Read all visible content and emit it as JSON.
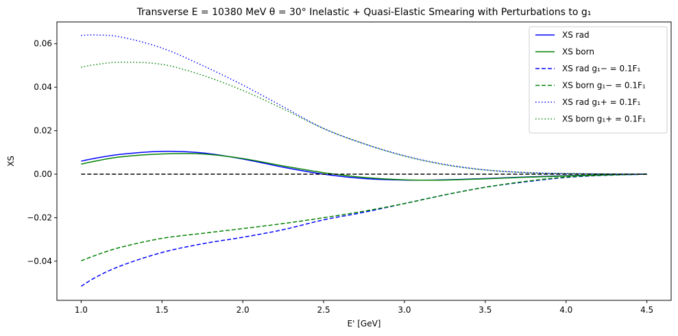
{
  "chart_data": {
    "type": "line",
    "title": "Transverse E = 10380 MeV θ = 30° Inelastic + Quasi-Elastic Smearing with Perturbations to g₁",
    "xlabel": "E' [GeV]",
    "ylabel": "XS",
    "xlim": [
      0.85,
      4.65
    ],
    "ylim": [
      -0.058,
      0.07
    ],
    "xticks": [
      1.0,
      1.5,
      2.0,
      2.5,
      3.0,
      3.5,
      4.0,
      4.5
    ],
    "xtick_labels": [
      "1.0",
      "1.5",
      "2.0",
      "2.5",
      "3.0",
      "3.5",
      "4.0",
      "4.5"
    ],
    "yticks": [
      -0.04,
      -0.02,
      0.0,
      0.02,
      0.04,
      0.06
    ],
    "ytick_labels": [
      "−0.04",
      "−0.02",
      "0.00",
      "0.02",
      "0.04",
      "0.06"
    ],
    "grid": false,
    "legend_position": "top-right",
    "x": [
      1.0,
      1.1,
      1.25,
      1.5,
      1.75,
      2.0,
      2.25,
      2.5,
      2.75,
      3.0,
      3.25,
      3.5,
      3.75,
      4.0,
      4.25,
      4.5
    ],
    "series": [
      {
        "name": "XS rad",
        "color": "#0000ff",
        "style": "solid",
        "values": [
          0.006,
          0.0075,
          0.0092,
          0.0105,
          0.0098,
          0.007,
          0.0032,
          0.0,
          -0.002,
          -0.0027,
          -0.0026,
          -0.002,
          -0.0013,
          -0.0007,
          -0.0003,
          0.0
        ]
      },
      {
        "name": "XS born",
        "color": "#008000",
        "style": "solid",
        "values": [
          0.0046,
          0.0062,
          0.008,
          0.0093,
          0.0093,
          0.0072,
          0.0038,
          0.0007,
          -0.0015,
          -0.0026,
          -0.0027,
          -0.0021,
          -0.0014,
          -0.0008,
          -0.0003,
          0.0
        ]
      },
      {
        "name": "XS rad g₁− = 0.1F₁",
        "color": "#0000ff",
        "style": "dashed",
        "values": [
          -0.0515,
          -0.047,
          -0.042,
          -0.036,
          -0.032,
          -0.029,
          -0.0255,
          -0.021,
          -0.0175,
          -0.0135,
          -0.0095,
          -0.006,
          -0.0035,
          -0.0015,
          -0.0005,
          0.0
        ]
      },
      {
        "name": "XS born g₁− = 0.1F₁",
        "color": "#008000",
        "style": "dashed",
        "values": [
          -0.0398,
          -0.037,
          -0.0335,
          -0.0295,
          -0.0272,
          -0.025,
          -0.0227,
          -0.02,
          -0.017,
          -0.0135,
          -0.0095,
          -0.006,
          -0.0033,
          -0.0013,
          -0.0004,
          0.0
        ]
      },
      {
        "name": "XS rad g₁+ = 0.1F₁",
        "color": "#0000ff",
        "style": "dotted",
        "values": [
          0.0638,
          0.064,
          0.063,
          0.058,
          0.05,
          0.041,
          0.031,
          0.021,
          0.014,
          0.0085,
          0.0045,
          0.002,
          0.0008,
          0.0003,
          0.0001,
          0.0
        ]
      },
      {
        "name": "XS born g₁+ = 0.1F₁",
        "color": "#008000",
        "style": "dotted",
        "values": [
          0.0492,
          0.0505,
          0.0515,
          0.0505,
          0.0455,
          0.0385,
          0.03,
          0.021,
          0.014,
          0.0083,
          0.0043,
          0.0019,
          0.0007,
          0.0003,
          0.0001,
          0.0
        ]
      },
      {
        "name": "",
        "color": "#000000",
        "style": "dashed",
        "values": [
          0.0,
          0.0,
          0.0,
          0.0,
          0.0,
          0.0,
          0.0,
          0.0,
          0.0,
          0.0,
          0.0,
          0.0,
          0.0,
          0.0,
          0.0,
          0.0
        ]
      }
    ]
  }
}
